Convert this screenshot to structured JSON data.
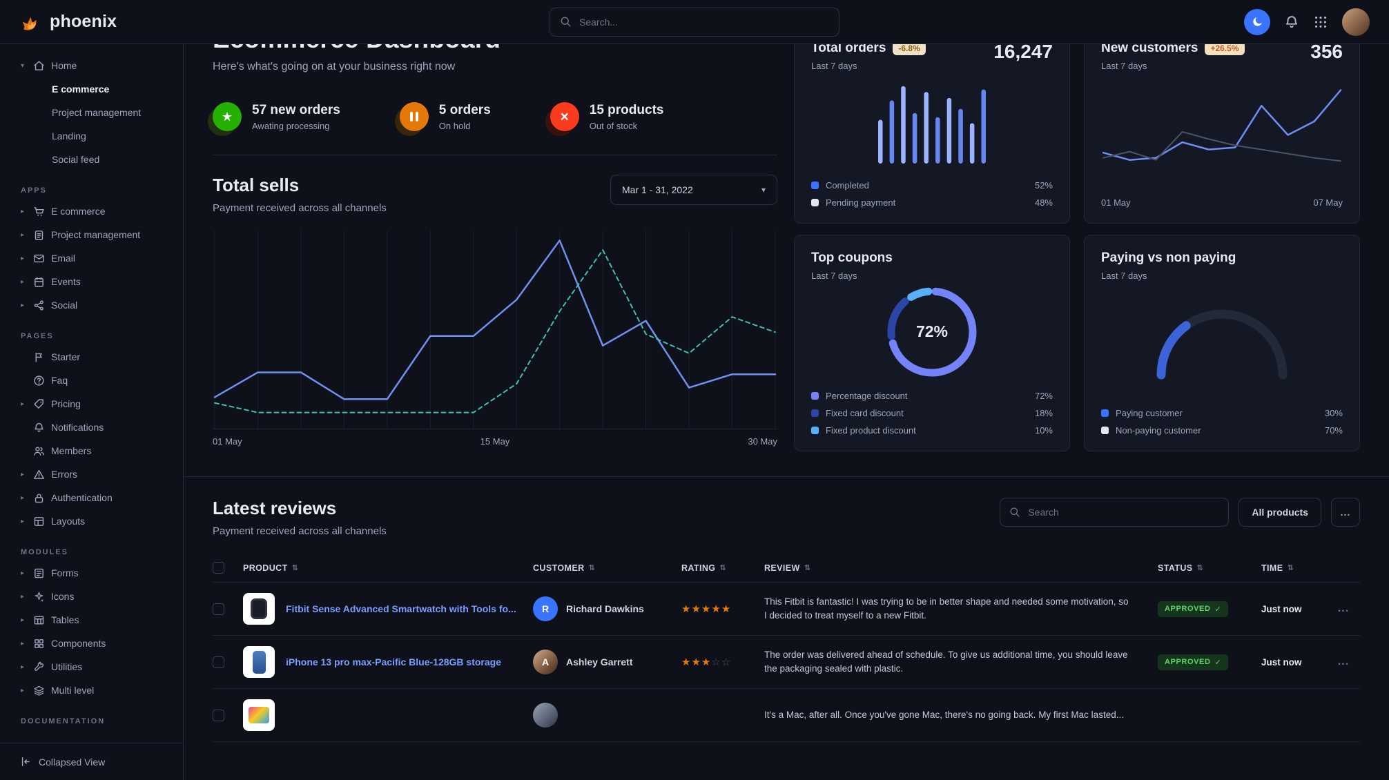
{
  "navbar": {
    "brand": "phoenix",
    "search_placeholder": "Search..."
  },
  "sidebar": {
    "home": {
      "label": "Home",
      "icon": "home-icon",
      "children": [
        {
          "label": "E commerce",
          "active": true
        },
        {
          "label": "Project management",
          "active": false
        },
        {
          "label": "Landing",
          "active": false
        },
        {
          "label": "Social feed",
          "active": false
        }
      ]
    },
    "sections": [
      {
        "label": "APPS",
        "items": [
          {
            "label": "E commerce",
            "icon": "cart-icon"
          },
          {
            "label": "Project management",
            "icon": "clipboard-icon"
          },
          {
            "label": "Email",
            "icon": "mail-icon"
          },
          {
            "label": "Events",
            "icon": "calendar-icon"
          },
          {
            "label": "Social",
            "icon": "share-icon"
          }
        ]
      },
      {
        "label": "PAGES",
        "items": [
          {
            "label": "Starter",
            "icon": "flag-icon"
          },
          {
            "label": "Faq",
            "icon": "question-icon"
          },
          {
            "label": "Pricing",
            "icon": "tag-icon"
          },
          {
            "label": "Notifications",
            "icon": "bell-icon"
          },
          {
            "label": "Members",
            "icon": "users-icon"
          },
          {
            "label": "Errors",
            "icon": "warning-icon"
          },
          {
            "label": "Authentication",
            "icon": "lock-icon"
          },
          {
            "label": "Layouts",
            "icon": "layout-icon"
          }
        ]
      },
      {
        "label": "MODULES",
        "items": [
          {
            "label": "Forms",
            "icon": "form-icon"
          },
          {
            "label": "Icons",
            "icon": "sparkle-icon"
          },
          {
            "label": "Tables",
            "icon": "table-icon"
          },
          {
            "label": "Components",
            "icon": "components-icon"
          },
          {
            "label": "Utilities",
            "icon": "wrench-icon"
          },
          {
            "label": "Multi level",
            "icon": "layers-icon"
          }
        ]
      },
      {
        "label": "DOCUMENTATION",
        "items": []
      }
    ],
    "footer": "Collapsed View"
  },
  "header": {
    "title": "Ecommerce Dashboard",
    "subtitle": "Here's what's going on at your business right now"
  },
  "stats": [
    {
      "title": "57 new orders",
      "caption": "Awating processing",
      "icon": "star-icon",
      "color": "#25b003"
    },
    {
      "title": "5 orders",
      "caption": "On hold",
      "icon": "pause-icon",
      "color": "#e5780b"
    },
    {
      "title": "15 products",
      "caption": "Out of stock",
      "icon": "cross-icon",
      "color": "#fa3b1d"
    }
  ],
  "total_sells": {
    "title": "Total sells",
    "subtitle": "Payment received across all channels",
    "date_range": "Mar 1 - 31, 2022",
    "axis_labels": [
      "01 May",
      "15 May",
      "30 May"
    ],
    "chart": {
      "type": "line",
      "grid": "#1b2130",
      "series": [
        {
          "name": "current",
          "color": "#7191f1",
          "width": 2.5,
          "dash": "",
          "values": [
            15,
            28,
            28,
            14,
            14,
            47,
            47,
            66,
            97,
            42,
            55,
            20,
            27,
            27
          ]
        },
        {
          "name": "previous",
          "color": "#40bfb3",
          "width": 2,
          "dash": "6 5",
          "values": [
            12,
            7,
            7,
            7,
            7,
            7,
            7,
            22,
            60,
            92,
            48,
            38,
            57,
            49
          ]
        }
      ]
    }
  },
  "cards": {
    "total_orders": {
      "title": "Total orders",
      "badge": "-6.8%",
      "period": "Last 7 days",
      "value": "16,247",
      "chart": {
        "type": "bar",
        "values": [
          52,
          75,
          92,
          60,
          85,
          55,
          78,
          65,
          48,
          88
        ],
        "colors": [
          "#9cb4fe",
          "#6687f2"
        ]
      },
      "legend": [
        {
          "label": "Completed",
          "value": "52%",
          "color": "#3874ff"
        },
        {
          "label": "Pending payment",
          "value": "48%",
          "color": "#e3e6ed"
        }
      ]
    },
    "new_customers": {
      "title": "New customers",
      "badge": "+26.5%",
      "period": "Last 7 days",
      "value": "356",
      "axis_labels": [
        "01 May",
        "07 May"
      ],
      "chart": {
        "type": "line",
        "series": [
          {
            "name": "current",
            "color": "#6e8ef8",
            "width": 2.5,
            "dash": "",
            "values": [
              35,
              28,
              30,
              45,
              38,
              40,
              80,
              52,
              65,
              95
            ]
          },
          {
            "name": "previous",
            "color": "#4c5366",
            "width": 2,
            "dash": "",
            "values": [
              30,
              36,
              28,
              55,
              48,
              42,
              38,
              34,
              30,
              27
            ]
          }
        ]
      }
    },
    "top_coupons": {
      "title": "Top coupons",
      "period": "Last 7 days",
      "center_value": "72%",
      "chart": {
        "type": "donut",
        "segments": [
          {
            "label": "Percentage discount",
            "value": 72,
            "color": "#7484f8"
          },
          {
            "label": "Fixed card discount",
            "value": 18,
            "color": "#2c46a8"
          },
          {
            "label": "Fixed product discount",
            "value": 10,
            "color": "#58b0f6"
          }
        ]
      },
      "legend": [
        {
          "label": "Percentage discount",
          "value": "72%",
          "color": "#7484f8"
        },
        {
          "label": "Fixed card discount",
          "value": "18%",
          "color": "#2c46a8"
        },
        {
          "label": "Fixed product discount",
          "value": "10%",
          "color": "#58b0f6"
        }
      ]
    },
    "paying_vs_non_paying": {
      "title": "Paying vs non paying",
      "period": "Last 7 days",
      "chart": {
        "type": "gauge",
        "value": 30,
        "color": "#3d63d9",
        "track": "#222939"
      },
      "legend": [
        {
          "label": "Paying customer",
          "value": "30%",
          "color": "#3874ff"
        },
        {
          "label": "Non-paying customer",
          "value": "70%",
          "color": "#e3e6ed"
        }
      ]
    }
  },
  "reviews": {
    "title": "Latest reviews",
    "subtitle": "Payment received across all channels",
    "search_placeholder": "Search",
    "filter_button": "All products",
    "more_button": "...",
    "row_actions": "...",
    "columns": [
      "PRODUCT",
      "CUSTOMER",
      "RATING",
      "REVIEW",
      "STATUS",
      "TIME"
    ],
    "rows": [
      {
        "product": "Fitbit Sense Advanced Smartwatch with Tools fo...",
        "customer": "Richard Dawkins",
        "customer_initial": "R",
        "rating": 5,
        "review": "This Fitbit is fantastic! I was trying to be in better shape and needed some motivation, so I decided to treat myself to a new Fitbit.",
        "status": "APPROVED",
        "time": "Just now"
      },
      {
        "product": "iPhone 13 pro max-Pacific Blue-128GB storage",
        "customer": "Ashley Garrett",
        "customer_initial": "A",
        "rating": 3,
        "review": "The order was delivered ahead of schedule. To give us additional time, you should leave the packaging sealed with plastic.",
        "status": "APPROVED",
        "time": "Just now"
      },
      {
        "product": "",
        "customer": "",
        "customer_initial": "",
        "rating": 0,
        "review": "It's a Mac, after all. Once you've gone Mac, there's no going back. My first Mac lasted...",
        "status": "",
        "time": ""
      }
    ]
  }
}
